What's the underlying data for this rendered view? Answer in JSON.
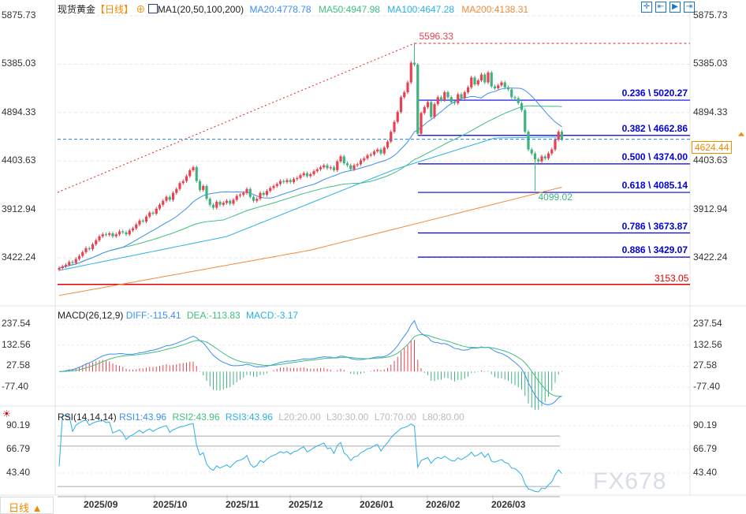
{
  "header": {
    "symbol": "现货黄金",
    "period": "【日线】",
    "indicator": "MA1(20,50,100,200)",
    "ma20": "MA20:4778.78",
    "ma50": "MA50:4947.98",
    "ma100": "MA100:4647.28",
    "ma200": "MA200:4138.31"
  },
  "macd": {
    "title": "MACD(26,12,9)",
    "diff": "DIFF:-115.41",
    "dea": "DEA:-113.83",
    "macd": "MACD:-3.17",
    "ticks": [
      "237.54",
      "132.56",
      "27.58",
      "-77.40"
    ]
  },
  "rsi": {
    "title": "RSI(14,14,14)",
    "rsi1": "RSI1:43.96",
    "rsi2": "RSI2:43.96",
    "rsi3": "RSI3:43.96",
    "l20": "L20:20.00",
    "l30": "L30:30.00",
    "l70": "L70:70.00",
    "l80": "L80:80.00",
    "ticks": [
      "90.19",
      "66.79",
      "43.40"
    ]
  },
  "period_button": "日线 ▲",
  "watermark": "FX678",
  "colors": {
    "up": "#e8424f",
    "down": "#3fb27f",
    "ma20": "#3d8ef0",
    "ma50": "#3fbf7f",
    "ma100": "#2ab0e8",
    "ma200": "#f08a3c",
    "fib": "#0000dd"
  },
  "chart_data": {
    "type": "candlestick",
    "price_ticks": [
      "5875.73",
      "5385.03",
      "4894.33",
      "4403.63",
      "3912.94",
      "3422.24"
    ],
    "ylim": [
      3000,
      5950
    ],
    "x_ticks": [
      "2025/09",
      "2025/10",
      "2025/11",
      "2025/12",
      "2026/01",
      "2026/02",
      "2026/03"
    ],
    "closes": [
      3318,
      3335,
      3350,
      3380,
      3370,
      3410,
      3440,
      3480,
      3520,
      3510,
      3560,
      3600,
      3640,
      3660,
      3655,
      3670,
      3640,
      3660,
      3690,
      3680,
      3660,
      3700,
      3720,
      3760,
      3800,
      3790,
      3840,
      3880,
      3870,
      3920,
      3960,
      4000,
      4040,
      4010,
      4080,
      4120,
      4180,
      4200,
      4250,
      4310,
      4340,
      4200,
      4110,
      4150,
      4020,
      3960,
      3930,
      3990,
      3960,
      3980,
      4000,
      3970,
      4010,
      4050,
      4060,
      4080,
      4120,
      4040,
      4000,
      4020,
      4080,
      4060,
      4100,
      4130,
      4150,
      4170,
      4200,
      4190,
      4210,
      4190,
      4220,
      4230,
      4260,
      4280,
      4250,
      4270,
      4300,
      4320,
      4340,
      4360,
      4330,
      4340,
      4310,
      4400,
      4450,
      4380,
      4360,
      4320,
      4360,
      4370,
      4410,
      4430,
      4460,
      4470,
      4500,
      4520,
      4480,
      4540,
      4600,
      4700,
      4800,
      4900,
      5050,
      5100,
      5200,
      5400,
      5380,
      4680,
      4890,
      4950,
      5000,
      4850,
      4980,
      5050,
      5020,
      5100,
      5050,
      5000,
      4990,
      5080,
      5040,
      5100,
      5150,
      5250,
      5180,
      5220,
      5280,
      5200,
      5300,
      5160,
      5140,
      5170,
      5200,
      5150,
      5130,
      5050,
      5040,
      4990,
      4920,
      4700,
      4520,
      4480,
      4420,
      4400,
      4450,
      4430,
      4480,
      4520,
      4620,
      4700,
      4624.44
    ],
    "ma100": [
      [
        0,
        3294
      ],
      [
        50,
        3638
      ],
      [
        100,
        4317
      ],
      [
        130,
        4637
      ],
      [
        150,
        4647.28
      ]
    ],
    "ma200": [
      [
        0,
        3040
      ],
      [
        75,
        3500
      ],
      [
        150,
        4138.31
      ]
    ],
    "high_label": "5596.33",
    "high": 5596.33,
    "high_index": 106,
    "low_label": "4099.02",
    "low": 4099.02,
    "low_index": 142,
    "current_price": "4624.44",
    "support_label": "3153.05",
    "support": 3153.05,
    "fib": [
      {
        "label": "0.236 \\ 5020.27",
        "value": 5020.27
      },
      {
        "label": "0.382 \\ 4662.86",
        "value": 4662.86
      },
      {
        "label": "0.500 \\ 4374.00",
        "value": 4374.0
      },
      {
        "label": "0.618 \\ 4085.14",
        "value": 4085.14
      },
      {
        "label": "0.786 \\ 3673.87",
        "value": 3673.87
      },
      {
        "label": "0.886 \\ 3429.07",
        "value": 3429.07
      }
    ]
  }
}
